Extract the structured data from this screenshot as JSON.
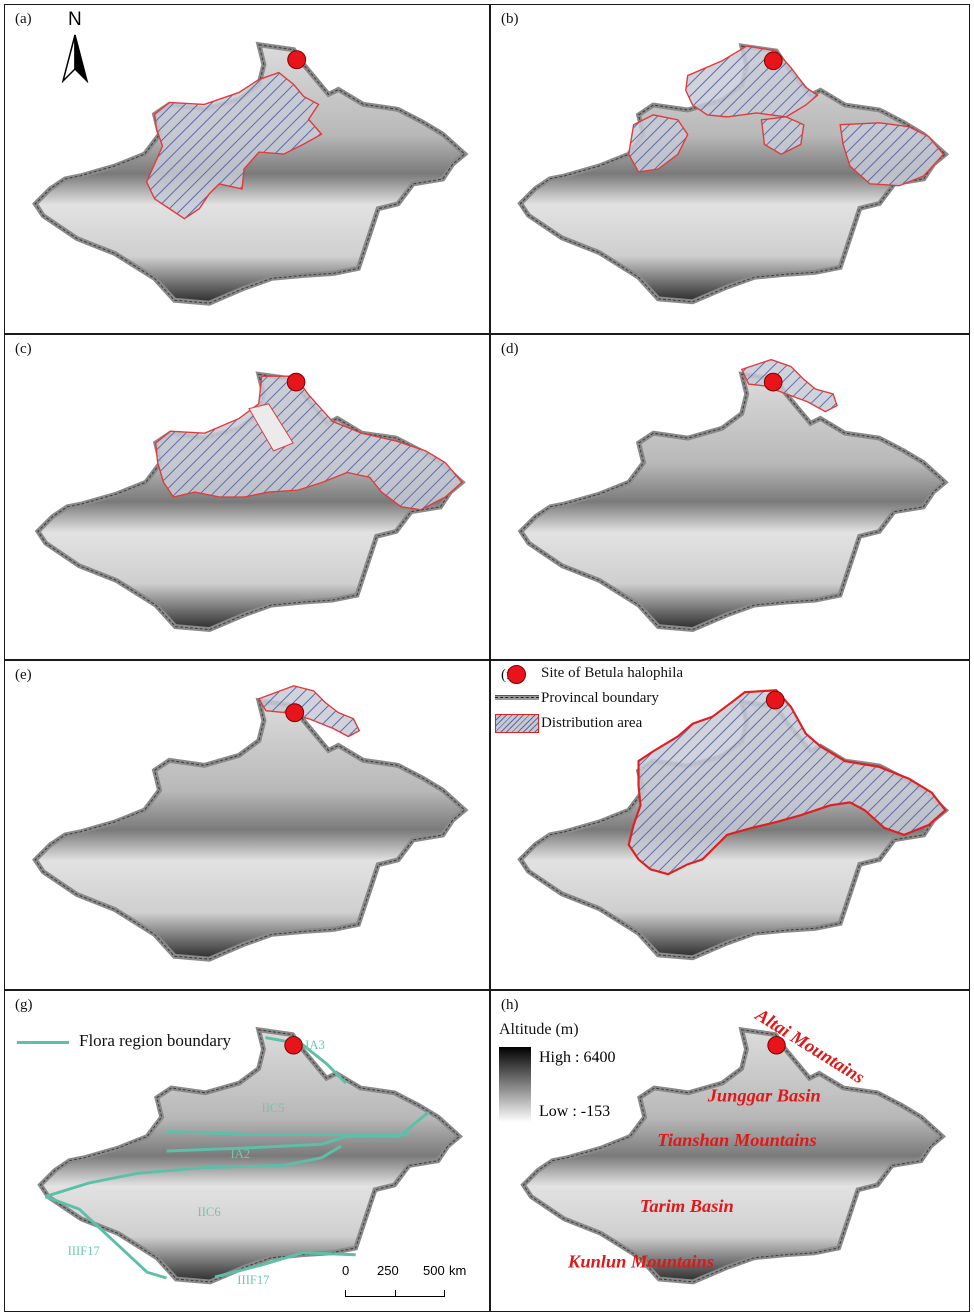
{
  "panels": [
    {
      "id": "a",
      "label": "(a)"
    },
    {
      "id": "b",
      "label": "(b)"
    },
    {
      "id": "c",
      "label": "(c)"
    },
    {
      "id": "d",
      "label": "(d)"
    },
    {
      "id": "e",
      "label": "(e)"
    },
    {
      "id": "f",
      "label": "(f)"
    },
    {
      "id": "g",
      "label": "(g)"
    },
    {
      "id": "h",
      "label": "(h)"
    }
  ],
  "north_arrow": {
    "label": "N"
  },
  "legend": {
    "site": "Site of Betula halophila",
    "boundary": "Provincal boundary",
    "distribution": "Distribution area"
  },
  "flora": {
    "legend_label": "Flora region boundary",
    "regions": [
      "IA3",
      "IIC5",
      "IA2",
      "IIC6",
      "IIIF17",
      "IIIF17"
    ],
    "color": "#5cc0a8"
  },
  "altitude": {
    "title": "Altitude (m)",
    "high": "High : 6400",
    "low": "Low : -153"
  },
  "regions": {
    "altai": "Altai Mountains",
    "junggar": "Junggar Basin",
    "tianshan": "Tianshan Mountains",
    "tarim": "Tarim Basin",
    "kunlun": "Kunlun Mountains"
  },
  "scale": {
    "tick0": "0",
    "tick1": "250",
    "tick2": "500",
    "unit": "km"
  },
  "colors": {
    "site": "#e8141c",
    "distribution_outline": "#e02020",
    "region_labels": "#e01818"
  }
}
